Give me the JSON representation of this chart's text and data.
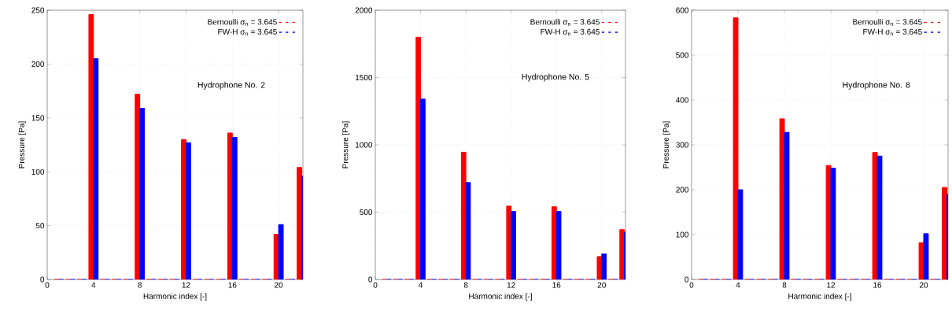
{
  "chart_data": [
    {
      "type": "bar",
      "x": [
        1,
        2,
        3,
        4,
        5,
        6,
        7,
        8,
        9,
        10,
        11,
        12,
        13,
        14,
        15,
        16,
        17,
        18,
        19,
        20,
        21,
        22
      ],
      "xlabel": "Harmonic index [-]",
      "ylabel": "Pressure [Pa]",
      "xlim": [
        0,
        22.1
      ],
      "xticks": [
        0,
        4,
        8,
        12,
        16,
        20
      ],
      "ylim": [
        0,
        250
      ],
      "yticks": [
        0,
        50,
        100,
        150,
        200,
        250
      ],
      "grid": true,
      "legend": "top right",
      "annotations": [
        "Hydrophone No. 2"
      ],
      "series": [
        {
          "name": "Bernoulli σ$_{n}$ = 3.645",
          "color": "#ff0000",
          "values": [
            0,
            0,
            0,
            246,
            0,
            0,
            0,
            172,
            0,
            0,
            0,
            130,
            0,
            0,
            0,
            136,
            0,
            0,
            0,
            42,
            0,
            104
          ]
        },
        {
          "name": "FW-H σ$_{n}$ = 3.645",
          "color": "#0000ff",
          "values": [
            0,
            0,
            0,
            205,
            0,
            0,
            0,
            159,
            0,
            0,
            0,
            127,
            0,
            0,
            0,
            132,
            0,
            0,
            0,
            51,
            0,
            96
          ]
        }
      ]
    },
    {
      "type": "bar",
      "x": [
        1,
        2,
        3,
        4,
        5,
        6,
        7,
        8,
        9,
        10,
        11,
        12,
        13,
        14,
        15,
        16,
        17,
        18,
        19,
        20,
        21,
        22
      ],
      "xlabel": "Harmonic index [-]",
      "ylabel": "Pressure [Pa]",
      "xlim": [
        0,
        22.1
      ],
      "xticks": [
        0,
        4,
        8,
        12,
        16,
        20
      ],
      "ylim": [
        0,
        2000
      ],
      "yticks": [
        0,
        500,
        1000,
        1500,
        2000
      ],
      "grid": true,
      "legend": "top right",
      "annotations": [
        "Hydrophone No. 5"
      ],
      "series": [
        {
          "name": "Bernoulli σ$_{n}$ = 3.645",
          "color": "#ff0000",
          "values": [
            0,
            0,
            0,
            1800,
            0,
            0,
            0,
            945,
            0,
            0,
            0,
            545,
            0,
            0,
            0,
            540,
            0,
            0,
            0,
            170,
            0,
            370
          ]
        },
        {
          "name": "FW-H σ$_{n}$ = 3.645",
          "color": "#0000ff",
          "values": [
            0,
            0,
            0,
            1340,
            0,
            0,
            0,
            720,
            0,
            0,
            0,
            505,
            0,
            0,
            0,
            505,
            0,
            0,
            0,
            190,
            0,
            350
          ]
        }
      ]
    },
    {
      "type": "bar",
      "x": [
        1,
        2,
        3,
        4,
        5,
        6,
        7,
        8,
        9,
        10,
        11,
        12,
        13,
        14,
        15,
        16,
        17,
        18,
        19,
        20,
        21,
        22
      ],
      "xlabel": "Harmonic index [-]",
      "ylabel": "Pressure [Pa]",
      "xlim": [
        0,
        22.1
      ],
      "xticks": [
        0,
        4,
        8,
        12,
        16,
        20
      ],
      "ylim": [
        0,
        600
      ],
      "yticks": [
        0,
        100,
        200,
        300,
        400,
        500,
        600
      ],
      "grid": true,
      "legend": "top right",
      "annotations": [
        "Hydrophone No. 8"
      ],
      "series": [
        {
          "name": "Bernoulli σ$_{n}$ = 3.645",
          "color": "#ff0000",
          "values": [
            0,
            0,
            0,
            583,
            0,
            0,
            0,
            358,
            0,
            0,
            0,
            254,
            0,
            0,
            0,
            283,
            0,
            0,
            0,
            82,
            0,
            205
          ]
        },
        {
          "name": "FW-H σ$_{n}$ = 3.645",
          "color": "#0000ff",
          "values": [
            0,
            0,
            0,
            200,
            0,
            0,
            0,
            328,
            0,
            0,
            0,
            248,
            0,
            0,
            0,
            275,
            0,
            0,
            0,
            102,
            0,
            190
          ]
        }
      ]
    }
  ]
}
